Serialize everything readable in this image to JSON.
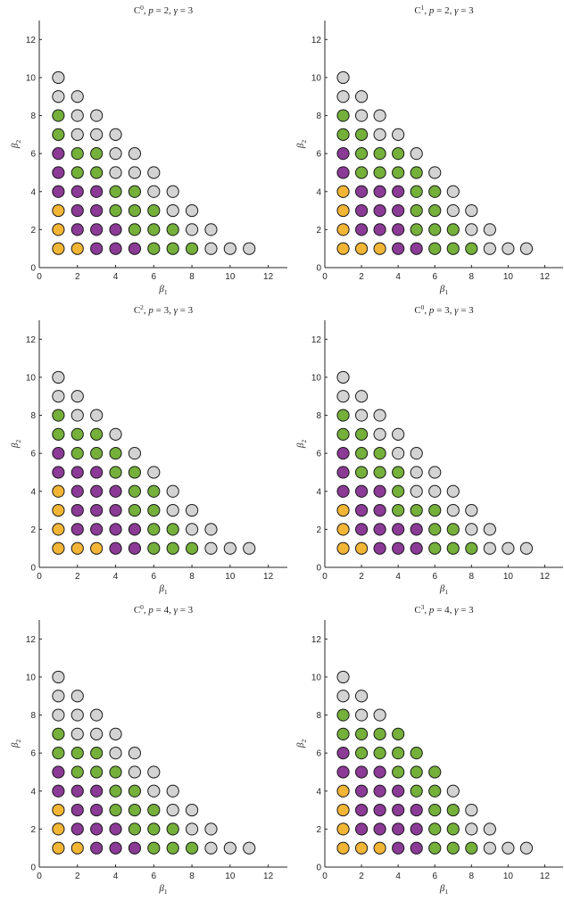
{
  "colors": {
    "orange": "#f2b535",
    "purple": "#8b3a96",
    "green": "#74b03a",
    "gray": "#d3d3d3",
    "edge": "#1a1a1a",
    "axis": "#262626"
  },
  "chart_data": [
    {
      "type": "scatter",
      "title": {
        "base": "C",
        "sup": "0",
        "p": "2",
        "gamma": "3"
      },
      "xlabel": {
        "sym": "β",
        "sub": "1"
      },
      "ylabel": {
        "sym": "β",
        "sub": "2"
      },
      "xlim": [
        0,
        13
      ],
      "ylim": [
        0,
        13
      ],
      "xticks": [
        0,
        2,
        4,
        6,
        8,
        10,
        12
      ],
      "yticks": [
        0,
        2,
        4,
        6,
        8,
        10,
        12
      ],
      "rows": {
        "1": "OOPPPGGGEEE",
        "2": "OPPPGGGEE",
        "3": "OPPGGGEE",
        "4": "PPPGGEE",
        "5": "PGGEEE",
        "6": "PGGEE",
        "7": "GEEE",
        "8": "GEE",
        "9": "EE",
        "10": "E"
      }
    },
    {
      "type": "scatter",
      "title": {
        "base": "C",
        "sup": "1",
        "p": "2",
        "gamma": "3"
      },
      "xlabel": {
        "sym": "β",
        "sub": "1"
      },
      "ylabel": {
        "sym": "β",
        "sub": "2"
      },
      "xlim": [
        0,
        13
      ],
      "ylim": [
        0,
        13
      ],
      "xticks": [
        0,
        2,
        4,
        6,
        8,
        10,
        12
      ],
      "yticks": [
        0,
        2,
        4,
        6,
        8,
        10,
        12
      ],
      "rows": {
        "1": "OOOPPGGGEEE",
        "2": "OPPPGGGEE",
        "3": "OPPPGGEE",
        "4": "OPPPGGE",
        "5": "PGGGGE",
        "6": "PGGGE",
        "7": "GGEE",
        "8": "GEE",
        "9": "EE",
        "10": "E"
      }
    },
    {
      "type": "scatter",
      "title": {
        "base": "C",
        "sup": "2",
        "p": "3",
        "gamma": "3"
      },
      "xlabel": {
        "sym": "β",
        "sub": "1"
      },
      "ylabel": {
        "sym": "β",
        "sub": "2"
      },
      "xlim": [
        0,
        13
      ],
      "ylim": [
        0,
        13
      ],
      "xticks": [
        0,
        2,
        4,
        6,
        8,
        10,
        12
      ],
      "yticks": [
        0,
        2,
        4,
        6,
        8,
        10,
        12
      ],
      "rows": {
        "1": "OOOPPGGGEEE",
        "2": "OPPPPGGEE",
        "3": "OPPPGGEE",
        "4": "OPPPGGE",
        "5": "PPPGGE",
        "6": "PGGGE",
        "7": "GGGE",
        "8": "GEE",
        "9": "EE",
        "10": "E"
      }
    },
    {
      "type": "scatter",
      "title": {
        "base": "C",
        "sup": "0",
        "p": "3",
        "gamma": "3"
      },
      "xlabel": {
        "sym": "β",
        "sub": "1"
      },
      "ylabel": {
        "sym": "β",
        "sub": "2"
      },
      "xlim": [
        0,
        13
      ],
      "ylim": [
        0,
        13
      ],
      "xticks": [
        0,
        2,
        4,
        6,
        8,
        10,
        12
      ],
      "yticks": [
        0,
        2,
        4,
        6,
        8,
        10,
        12
      ],
      "rows": {
        "1": "OOPPPGGGEEE",
        "2": "OPPPPGGEE",
        "3": "OPPGGGEE",
        "4": "PPPGEEE",
        "5": "PGGGEE",
        "6": "PGGEE",
        "7": "GGEE",
        "8": "GEE",
        "9": "EE",
        "10": "E"
      }
    },
    {
      "type": "scatter",
      "title": {
        "base": "C",
        "sup": "0",
        "p": "4",
        "gamma": "3"
      },
      "xlabel": {
        "sym": "β",
        "sub": "1"
      },
      "ylabel": {
        "sym": "β",
        "sub": "2"
      },
      "xlim": [
        0,
        13
      ],
      "ylim": [
        0,
        13
      ],
      "xticks": [
        0,
        2,
        4,
        6,
        8,
        10,
        12
      ],
      "yticks": [
        0,
        2,
        4,
        6,
        8,
        10,
        12
      ],
      "rows": {
        "1": "OOPPPGGGEEE",
        "2": "OPPPGGGEE",
        "3": "OPPGGGEE",
        "4": "PPPGGEE",
        "5": "PGGGEE",
        "6": "GGGEE",
        "7": "GEEE",
        "8": "EEE",
        "9": "EE",
        "10": "E"
      }
    },
    {
      "type": "scatter",
      "title": {
        "base": "C",
        "sup": "3",
        "p": "4",
        "gamma": "3"
      },
      "xlabel": {
        "sym": "β",
        "sub": "1"
      },
      "ylabel": {
        "sym": "β",
        "sub": "2"
      },
      "xlim": [
        0,
        13
      ],
      "ylim": [
        0,
        13
      ],
      "xticks": [
        0,
        2,
        4,
        6,
        8,
        10,
        12
      ],
      "yticks": [
        0,
        2,
        4,
        6,
        8,
        10,
        12
      ],
      "rows": {
        "1": "OOOPPGGGEEE",
        "2": "OPPPPGGEE",
        "3": "OPPPPGGE",
        "4": "OPPPGGE",
        "5": "PPPGGG",
        "6": "PGGGG",
        "7": "GGGG",
        "8": "GEE",
        "9": "EE",
        "10": "E"
      }
    }
  ]
}
